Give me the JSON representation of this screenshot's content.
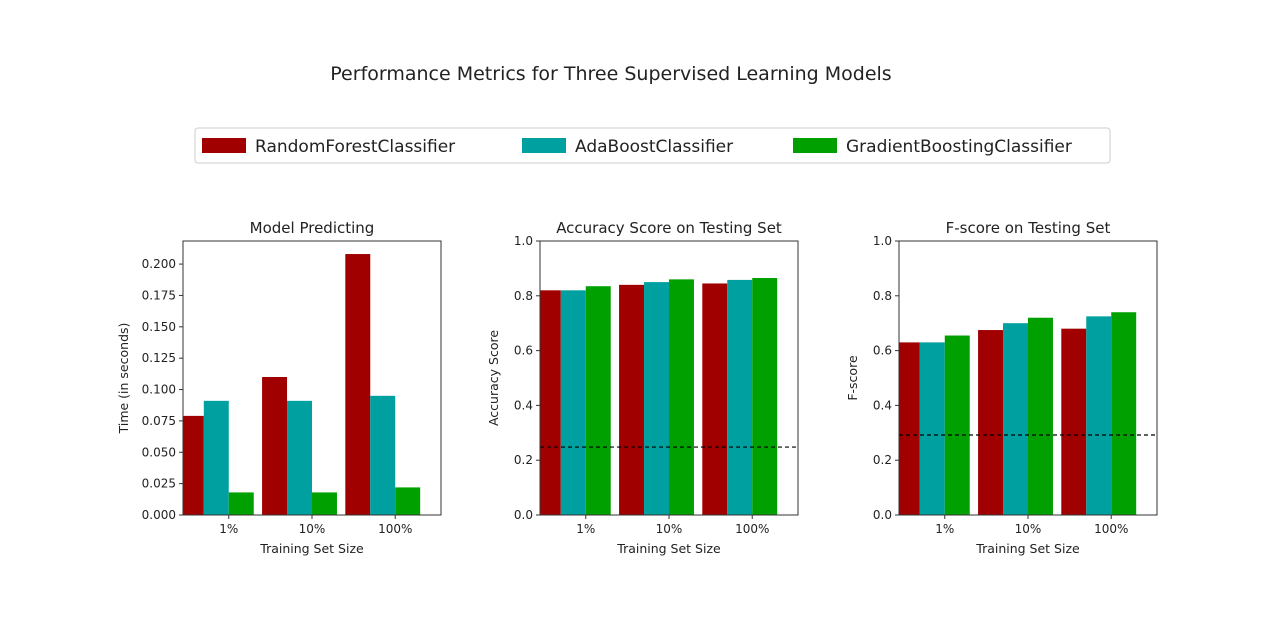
{
  "chart_data": {
    "title": "Performance Metrics for Three Supervised Learning Models",
    "legend": {
      "placement": "top-center",
      "entries": [
        {
          "name": "RandomForestClassifier",
          "color": "#a00000"
        },
        {
          "name": "AdaBoostClassifier",
          "color": "#00a0a0"
        },
        {
          "name": "GradientBoostingClassifier",
          "color": "#00a000"
        }
      ]
    },
    "charts": [
      {
        "type": "bar",
        "title": "Model Predicting",
        "xlabel": "Training Set Size",
        "ylabel": "Time (in seconds)",
        "categories": [
          "1%",
          "10%",
          "100%"
        ],
        "ylim": [
          0,
          0.2184
        ],
        "yticks": [
          0,
          0.025,
          0.05,
          0.075,
          0.1,
          0.125,
          0.15,
          0.175,
          0.2
        ],
        "ytick_labels": [
          "0.000",
          "0.025",
          "0.050",
          "0.075",
          "0.100",
          "0.125",
          "0.150",
          "0.175",
          "0.200"
        ],
        "series": [
          {
            "name": "RandomForestClassifier",
            "values": [
              0.079,
              0.11,
              0.208
            ]
          },
          {
            "name": "AdaBoostClassifier",
            "values": [
              0.091,
              0.091,
              0.095
            ]
          },
          {
            "name": "GradientBoostingClassifier",
            "values": [
              0.018,
              0.018,
              0.022
            ]
          }
        ]
      },
      {
        "type": "bar",
        "title": "Accuracy Score on Testing Set",
        "xlabel": "Training Set Size",
        "ylabel": "Accuracy Score",
        "categories": [
          "1%",
          "10%",
          "100%"
        ],
        "ylim": [
          0,
          1
        ],
        "yticks": [
          0,
          0.2,
          0.4,
          0.6,
          0.8,
          1.0
        ],
        "ytick_labels": [
          "0.0",
          "0.2",
          "0.4",
          "0.6",
          "0.8",
          "1.0"
        ],
        "baseline": 0.248,
        "series": [
          {
            "name": "RandomForestClassifier",
            "values": [
              0.82,
              0.84,
              0.845
            ]
          },
          {
            "name": "AdaBoostClassifier",
            "values": [
              0.82,
              0.85,
              0.858
            ]
          },
          {
            "name": "GradientBoostingClassifier",
            "values": [
              0.835,
              0.86,
              0.865
            ]
          }
        ]
      },
      {
        "type": "bar",
        "title": "F-score on Testing Set",
        "xlabel": "Training Set Size",
        "ylabel": "F-score",
        "categories": [
          "1%",
          "10%",
          "100%"
        ],
        "ylim": [
          0,
          1
        ],
        "yticks": [
          0,
          0.2,
          0.4,
          0.6,
          0.8,
          1.0
        ],
        "ytick_labels": [
          "0.0",
          "0.2",
          "0.4",
          "0.6",
          "0.8",
          "1.0"
        ],
        "baseline": 0.292,
        "series": [
          {
            "name": "RandomForestClassifier",
            "values": [
              0.63,
              0.675,
              0.68
            ]
          },
          {
            "name": "AdaBoostClassifier",
            "values": [
              0.63,
              0.7,
              0.725
            ]
          },
          {
            "name": "GradientBoostingClassifier",
            "values": [
              0.655,
              0.72,
              0.74
            ]
          }
        ]
      }
    ]
  }
}
